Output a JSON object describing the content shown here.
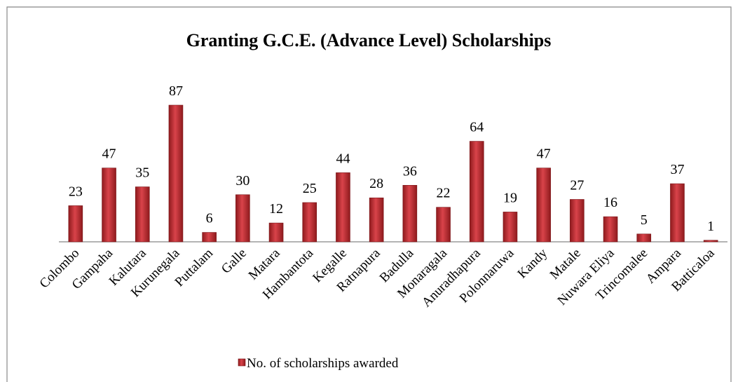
{
  "chart_data": {
    "type": "bar",
    "title": "Granting G.C.E. (Advance Level) Scholarships",
    "categories": [
      "Colombo",
      "Gampaha",
      "Kalutara",
      "Kurunegala",
      "Puttalam",
      "Galle",
      "Matara",
      "Hambantota",
      "Kegalle",
      "Ratnapura",
      "Badulla",
      "Monaragala",
      "Anuradhapura",
      "Polonnaruwa",
      "Kandy",
      "Matale",
      "Nuwara Eliya",
      "Trincomalee",
      "Ampara",
      "Batticaloa"
    ],
    "series": [
      {
        "name": "No. of scholarships awarded",
        "color": "#c0282d",
        "values": [
          23,
          47,
          35,
          87,
          6,
          30,
          12,
          25,
          44,
          28,
          36,
          22,
          64,
          19,
          47,
          27,
          16,
          5,
          37,
          1
        ]
      }
    ],
    "legend": "bottom"
  }
}
